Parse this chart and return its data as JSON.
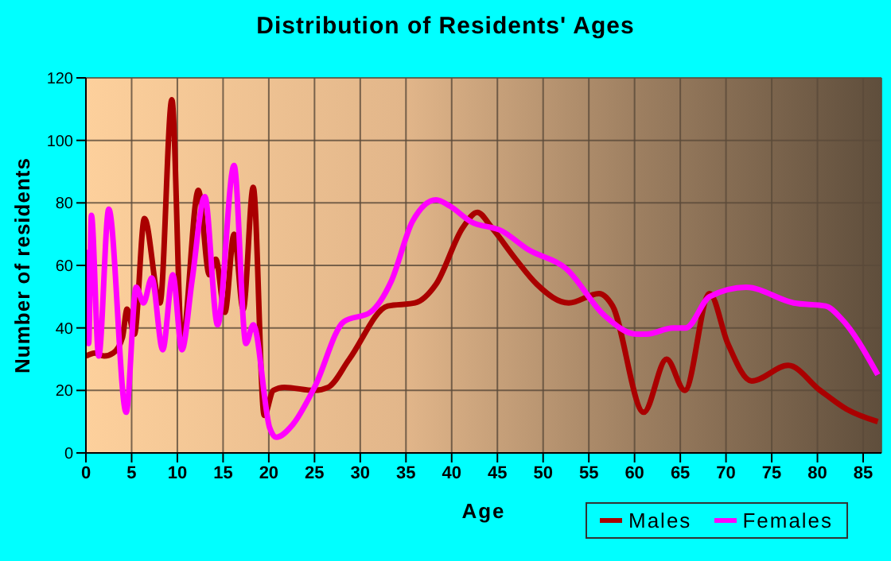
{
  "chart_data": {
    "type": "line",
    "title": "Distribution of Residents' Ages",
    "xlabel": "Age",
    "ylabel": "Number of residents",
    "xlim": [
      0,
      87
    ],
    "xticks": [
      0,
      5,
      10,
      15,
      20,
      25,
      30,
      35,
      40,
      45,
      50,
      55,
      60,
      65,
      70,
      75,
      80,
      85
    ],
    "ylim": [
      0,
      120
    ],
    "yticks": [
      0,
      20,
      40,
      60,
      80,
      100,
      120
    ],
    "grid": true,
    "legend": "bottom right",
    "marker": "none",
    "line_style": "solid",
    "series": [
      {
        "name": "Males",
        "color": "#aa0000",
        "x": [
          0,
          1,
          2,
          3,
          4,
          4.5,
          5.3,
          6.4,
          8.1,
          9.4,
          10.5,
          12.3,
          13.5,
          14.2,
          15.2,
          16.2,
          17.2,
          18.3,
          19.5,
          20.5,
          21.7,
          25,
          26.5,
          28.8,
          33,
          36,
          38.3,
          41.2,
          42.8,
          44.4,
          47,
          49.3,
          52.8,
          56.1,
          57.6,
          61,
          63.5,
          65.5,
          68.2,
          70.2,
          72.8,
          76.8,
          80.3,
          83.2,
          86.6
        ],
        "values": [
          31,
          32,
          31,
          32,
          37,
          46,
          38,
          75,
          48,
          113,
          35,
          84,
          57,
          62,
          45,
          70,
          46,
          85,
          12,
          20,
          21,
          20,
          21,
          30,
          47,
          48,
          54,
          72,
          77,
          72,
          62,
          54,
          48,
          51,
          47,
          13,
          30,
          20,
          51,
          35,
          23,
          28,
          20,
          14,
          10
        ]
      },
      {
        "name": "Females",
        "color": "#ff00ff",
        "x": [
          0,
          0.3,
          0.6,
          1.4,
          2.5,
          4.4,
          5.5,
          6.3,
          7.2,
          8.4,
          9.5,
          10.5,
          11.6,
          13,
          14.4,
          16.2,
          17.5,
          18.3,
          20.1,
          20.8,
          22.6,
          25,
          28.2,
          31.1,
          33.4,
          35.7,
          38.3,
          39.8,
          42.1,
          45.5,
          48.4,
          52.5,
          56.7,
          60.2,
          61.3,
          64.2,
          65.6,
          68.2,
          72.2,
          77.4,
          80.9,
          82.6,
          86.6
        ],
        "values": [
          65,
          35,
          76,
          31,
          78,
          13,
          53,
          48,
          56,
          33,
          57,
          33,
          55,
          82,
          41,
          92,
          35,
          41,
          8,
          5,
          9,
          21,
          42,
          45,
          55,
          74,
          81,
          79,
          74,
          71,
          65,
          59,
          44,
          38,
          38,
          40,
          40,
          50,
          53,
          48,
          47,
          43,
          25
        ]
      }
    ]
  }
}
